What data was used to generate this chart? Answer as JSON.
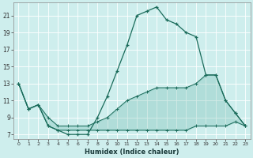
{
  "xlabel": "Humidex (Indice chaleur)",
  "background_color": "#ceeeed",
  "line_color": "#1a6b5a",
  "x_values": [
    0,
    1,
    2,
    3,
    4,
    5,
    6,
    7,
    8,
    9,
    10,
    11,
    12,
    13,
    14,
    15,
    16,
    17,
    18,
    19,
    20,
    21,
    22,
    23
  ],
  "y_main": [
    13,
    10,
    10.5,
    8,
    7.5,
    7,
    7,
    7,
    9,
    11.5,
    14.5,
    17.5,
    21,
    21.5,
    22,
    20.5,
    20,
    19,
    18.5,
    14,
    14,
    11,
    9.5,
    8
  ],
  "y_upper": [
    13,
    10,
    10.5,
    9,
    8,
    8,
    8,
    8,
    8.5,
    9,
    10,
    11,
    11.5,
    12,
    12.5,
    12.5,
    12.5,
    12.5,
    13,
    14,
    14,
    11,
    9.5,
    8
  ],
  "y_lower": [
    13,
    10,
    10.5,
    8,
    7.5,
    7.5,
    7.5,
    7.5,
    7.5,
    7.5,
    7.5,
    7.5,
    7.5,
    7.5,
    7.5,
    7.5,
    7.5,
    7.5,
    8,
    8,
    8,
    8,
    8.5,
    8
  ],
  "ylim": [
    6.5,
    22.5
  ],
  "xlim": [
    -0.5,
    23.5
  ],
  "yticks": [
    7,
    9,
    11,
    13,
    15,
    17,
    19,
    21
  ],
  "xticks": [
    0,
    1,
    2,
    3,
    4,
    5,
    6,
    7,
    8,
    9,
    10,
    11,
    12,
    13,
    14,
    15,
    16,
    17,
    18,
    19,
    20,
    21,
    22,
    23
  ],
  "grid_color": "#b8e0df",
  "fill_color": "#5aada0"
}
